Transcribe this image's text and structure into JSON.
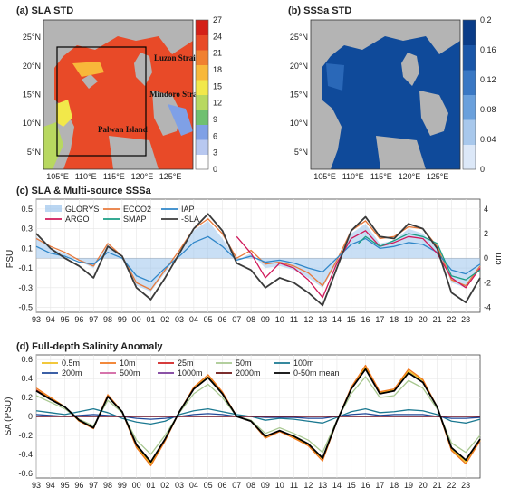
{
  "chart_data": [
    {
      "panel": "a",
      "type": "heatmap",
      "title": "(a) SLA STD",
      "x_ticks": [
        "105°E",
        "110°E",
        "115°E",
        "120°E",
        "125°E"
      ],
      "y_ticks": [
        "5°N",
        "10°N",
        "15°N",
        "20°N",
        "25°N"
      ],
      "colorbar_ticks": [
        "0",
        "3",
        "6",
        "9",
        "12",
        "15",
        "18",
        "21",
        "24",
        "27"
      ],
      "colorbar_colors": [
        "#ffffff",
        "#b8c8f0",
        "#7fa0e6",
        "#6fc070",
        "#b8d860",
        "#f2e84a",
        "#f8b83a",
        "#f08030",
        "#e84a28",
        "#d42018"
      ],
      "annotations": [
        "Luzon Strait",
        "Mindoro Strait",
        "Palwan Island"
      ]
    },
    {
      "panel": "b",
      "type": "heatmap",
      "title": "(b) SSSa STD",
      "x_ticks": [
        "105°E",
        "110°E",
        "115°E",
        "120°E",
        "125°E"
      ],
      "y_ticks": [
        "5°N",
        "10°N",
        "15°N",
        "20°N",
        "25°N"
      ],
      "colorbar_ticks": [
        "0",
        "0.04",
        "0.08",
        "0.12",
        "0.16",
        "0.2"
      ],
      "colorbar_colors": [
        "#dce8f8",
        "#a8c8ec",
        "#6aa0dc",
        "#3a78c4",
        "#1a56a8",
        "#0a3c88"
      ]
    },
    {
      "panel": "c",
      "type": "line",
      "title": "(c) SLA & Multi-source SSSa",
      "ylabel": "PSU",
      "y2label": "cm",
      "y_ticks": [
        "0.5",
        "0.3",
        "0.1",
        "-0.1",
        "-0.3",
        "-0.5"
      ],
      "y2_ticks": [
        "4",
        "2",
        "0",
        "-2",
        "-4"
      ],
      "ylim": [
        -0.55,
        0.6
      ],
      "y2lim": [
        -4.4,
        4.8
      ],
      "x_ticks": [
        "93",
        "94",
        "95",
        "96",
        "97",
        "98",
        "99",
        "00",
        "01",
        "02",
        "03",
        "04",
        "05",
        "06",
        "07",
        "08",
        "09",
        "10",
        "11",
        "12",
        "13",
        "14",
        "15",
        "16",
        "17",
        "18",
        "19",
        "20",
        "21",
        "22",
        "23"
      ],
      "x_years": [
        1993,
        2024
      ],
      "series": [
        {
          "name": "GLORYS",
          "color": "#9cc4ec",
          "years": [
            1993,
            1994,
            1995,
            1996,
            1997,
            1998,
            1999,
            2000,
            2001,
            2002,
            2003,
            2004,
            2005,
            2006,
            2007,
            2008,
            2009,
            2010,
            2011,
            2012,
            2013,
            2014,
            2015,
            2016,
            2017,
            2018,
            2019,
            2020,
            2021,
            2022,
            2023,
            2024
          ],
          "values": [
            0.22,
            0.1,
            0.05,
            -0.03,
            -0.1,
            0.14,
            0.0,
            -0.28,
            -0.34,
            -0.15,
            0.05,
            0.28,
            0.38,
            0.2,
            -0.02,
            0.05,
            -0.1,
            -0.08,
            -0.12,
            -0.2,
            -0.3,
            -0.05,
            0.25,
            0.35,
            0.15,
            0.18,
            0.3,
            0.25,
            0.1,
            -0.25,
            -0.3,
            -0.1
          ]
        },
        {
          "name": "ECCO2",
          "color": "#e87a3c",
          "years": [
            1993,
            1994,
            1995,
            1996,
            1997,
            1998,
            1999,
            2000,
            2001,
            2002,
            2003,
            2004,
            2005,
            2006,
            2007,
            2008,
            2009,
            2010,
            2011,
            2012,
            2013,
            2014,
            2015,
            2016,
            2017,
            2018,
            2019,
            2020,
            2021,
            2022,
            2023,
            2024
          ],
          "values": [
            0.2,
            0.12,
            0.06,
            -0.02,
            -0.08,
            0.15,
            0.02,
            -0.25,
            -0.32,
            -0.12,
            0.08,
            0.3,
            0.4,
            0.25,
            0.0,
            0.08,
            -0.06,
            -0.04,
            -0.08,
            -0.15,
            -0.28,
            -0.02,
            0.28,
            0.38,
            0.2,
            0.22,
            0.32,
            0.3,
            0.12,
            -0.22,
            -0.28,
            -0.08
          ]
        },
        {
          "name": "IAP",
          "color": "#2f86c8",
          "years": [
            1993,
            1994,
            1995,
            1996,
            1997,
            1998,
            1999,
            2000,
            2001,
            2002,
            2003,
            2004,
            2005,
            2006,
            2007,
            2008,
            2009,
            2010,
            2011,
            2012,
            2013,
            2014,
            2015,
            2016,
            2017,
            2018,
            2019,
            2020,
            2021,
            2022,
            2023,
            2024
          ],
          "values": [
            0.12,
            0.05,
            0.02,
            -0.04,
            -0.06,
            0.06,
            0.0,
            -0.18,
            -0.24,
            -0.1,
            0.02,
            0.16,
            0.22,
            0.12,
            -0.02,
            0.02,
            -0.04,
            -0.02,
            -0.05,
            -0.1,
            -0.14,
            0.0,
            0.14,
            0.2,
            0.1,
            0.12,
            0.16,
            0.14,
            0.06,
            -0.12,
            -0.16,
            -0.06
          ]
        },
        {
          "name": "ARGO",
          "color": "#d0185a",
          "years": [
            2007,
            2008,
            2009,
            2010,
            2011,
            2012,
            2013,
            2014,
            2015,
            2016,
            2017,
            2018,
            2019,
            2020,
            2021,
            2022,
            2023,
            2024
          ],
          "values": [
            0.22,
            0.05,
            -0.2,
            -0.05,
            -0.1,
            -0.22,
            -0.4,
            -0.05,
            0.2,
            0.28,
            0.12,
            0.16,
            0.22,
            0.2,
            0.05,
            -0.2,
            -0.3,
            -0.1
          ]
        },
        {
          "name": "SMAP",
          "color": "#1a9e84",
          "years": [
            2015.5,
            2016,
            2017,
            2018,
            2019,
            2020,
            2021,
            2022,
            2023,
            2024
          ],
          "values": [
            0.15,
            0.22,
            0.12,
            0.18,
            0.25,
            0.22,
            0.15,
            -0.18,
            -0.22,
            -0.12
          ]
        },
        {
          "name": "-SLA",
          "color": "#3a3a3a",
          "years": [
            1993,
            1994,
            1995,
            1996,
            1997,
            1998,
            1999,
            2000,
            2001,
            2002,
            2003,
            2004,
            2005,
            2006,
            2007,
            2008,
            2009,
            2010,
            2011,
            2012,
            2013,
            2014,
            2015,
            2016,
            2017,
            2018,
            2019,
            2020,
            2021,
            2022,
            2023,
            2024
          ],
          "values": [
            0.25,
            0.1,
            0.0,
            -0.08,
            -0.2,
            0.12,
            0.02,
            -0.3,
            -0.42,
            -0.2,
            0.05,
            0.3,
            0.45,
            0.28,
            -0.05,
            -0.12,
            -0.3,
            -0.2,
            -0.25,
            -0.35,
            -0.48,
            -0.1,
            0.28,
            0.42,
            0.22,
            0.2,
            0.35,
            0.3,
            0.1,
            -0.35,
            -0.45,
            -0.2
          ]
        }
      ]
    },
    {
      "panel": "d",
      "type": "line",
      "title": "(d) Full-depth Salinity Anomaly",
      "ylabel": "SA (PSU)",
      "y_ticks": [
        "0.6",
        "0.4",
        "0.2",
        "0",
        "-0.2",
        "-0.4",
        "-0.6"
      ],
      "ylim": [
        -0.65,
        0.65
      ],
      "x_ticks": [
        "93",
        "94",
        "95",
        "96",
        "97",
        "98",
        "99",
        "00",
        "01",
        "02",
        "03",
        "04",
        "05",
        "06",
        "07",
        "08",
        "09",
        "10",
        "11",
        "12",
        "13",
        "14",
        "15",
        "16",
        "17",
        "18",
        "19",
        "20",
        "21",
        "22",
        "23"
      ],
      "x_years": [
        1993,
        2024
      ],
      "series": [
        {
          "name": "0.5m",
          "color": "#f0c020",
          "years": [
            1993,
            1994,
            1995,
            1996,
            1997,
            1998,
            1999,
            2000,
            2001,
            2002,
            2003,
            2004,
            2005,
            2006,
            2007,
            2008,
            2009,
            2010,
            2011,
            2012,
            2013,
            2014,
            2015,
            2016,
            2017,
            2018,
            2019,
            2020,
            2021,
            2022,
            2023,
            2024
          ],
          "values": [
            0.28,
            0.2,
            0.1,
            -0.05,
            -0.12,
            0.22,
            0.05,
            -0.32,
            -0.5,
            -0.25,
            0.05,
            0.3,
            0.42,
            0.25,
            0.0,
            -0.05,
            -0.22,
            -0.15,
            -0.22,
            -0.3,
            -0.45,
            -0.05,
            0.3,
            0.52,
            0.25,
            0.28,
            0.48,
            0.38,
            0.1,
            -0.35,
            -0.48,
            -0.25
          ]
        },
        {
          "name": "10m",
          "color": "#f07820",
          "years": [
            1993,
            1994,
            1995,
            1996,
            1997,
            1998,
            1999,
            2000,
            2001,
            2002,
            2003,
            2004,
            2005,
            2006,
            2007,
            2008,
            2009,
            2010,
            2011,
            2012,
            2013,
            2014,
            2015,
            2016,
            2017,
            2018,
            2019,
            2020,
            2021,
            2022,
            2023,
            2024
          ],
          "values": [
            0.3,
            0.2,
            0.1,
            -0.05,
            -0.13,
            0.23,
            0.05,
            -0.33,
            -0.52,
            -0.26,
            0.05,
            0.31,
            0.44,
            0.26,
            0.0,
            -0.05,
            -0.23,
            -0.16,
            -0.23,
            -0.31,
            -0.47,
            -0.05,
            0.31,
            0.54,
            0.26,
            0.29,
            0.5,
            0.39,
            0.1,
            -0.36,
            -0.5,
            -0.26
          ]
        },
        {
          "name": "25m",
          "color": "#d02020",
          "years": [
            1993,
            1994,
            1995,
            1996,
            1997,
            1998,
            1999,
            2000,
            2001,
            2002,
            2003,
            2004,
            2005,
            2006,
            2007,
            2008,
            2009,
            2010,
            2011,
            2012,
            2013,
            2014,
            2015,
            2016,
            2017,
            2018,
            2019,
            2020,
            2021,
            2022,
            2023,
            2024
          ],
          "values": [
            0.28,
            0.18,
            0.1,
            -0.04,
            -0.12,
            0.21,
            0.05,
            -0.3,
            -0.48,
            -0.24,
            0.05,
            0.29,
            0.41,
            0.24,
            0.0,
            -0.05,
            -0.21,
            -0.15,
            -0.21,
            -0.29,
            -0.44,
            -0.05,
            0.29,
            0.5,
            0.24,
            0.27,
            0.46,
            0.36,
            0.1,
            -0.33,
            -0.46,
            -0.24
          ]
        },
        {
          "name": "50m",
          "color": "#a8c890",
          "years": [
            1993,
            1994,
            1995,
            1996,
            1997,
            1998,
            1999,
            2000,
            2001,
            2002,
            2003,
            2004,
            2005,
            2006,
            2007,
            2008,
            2009,
            2010,
            2011,
            2012,
            2013,
            2014,
            2015,
            2016,
            2017,
            2018,
            2019,
            2020,
            2021,
            2022,
            2023,
            2024
          ],
          "values": [
            0.22,
            0.15,
            0.08,
            -0.03,
            -0.1,
            0.17,
            0.04,
            -0.25,
            -0.4,
            -0.2,
            0.04,
            0.24,
            0.34,
            0.2,
            0.0,
            -0.04,
            -0.18,
            -0.12,
            -0.18,
            -0.25,
            -0.38,
            -0.04,
            0.24,
            0.42,
            0.2,
            0.22,
            0.38,
            0.3,
            0.08,
            -0.28,
            -0.38,
            -0.2
          ]
        },
        {
          "name": "100m",
          "color": "#1a7890",
          "years": [
            1993,
            1994,
            1995,
            1996,
            1997,
            1998,
            1999,
            2000,
            2001,
            2002,
            2003,
            2004,
            2005,
            2006,
            2007,
            2008,
            2009,
            2010,
            2011,
            2012,
            2013,
            2014,
            2015,
            2016,
            2017,
            2018,
            2019,
            2020,
            2021,
            2022,
            2023,
            2024
          ],
          "values": [
            0.06,
            0.04,
            0.02,
            0.05,
            0.08,
            0.04,
            -0.02,
            -0.06,
            -0.08,
            -0.05,
            0.02,
            0.06,
            0.08,
            0.05,
            0.02,
            0.0,
            -0.04,
            -0.02,
            -0.03,
            -0.05,
            -0.07,
            -0.01,
            0.05,
            0.08,
            0.04,
            0.05,
            0.07,
            0.06,
            0.02,
            -0.05,
            -0.07,
            -0.03
          ]
        },
        {
          "name": "200m",
          "color": "#204a9a",
          "years": [
            1993,
            1994,
            1995,
            1996,
            1997,
            1998,
            1999,
            2000,
            2001,
            2002,
            2003,
            2004,
            2005,
            2006,
            2007,
            2008,
            2009,
            2010,
            2011,
            2012,
            2013,
            2014,
            2015,
            2016,
            2017,
            2018,
            2019,
            2020,
            2021,
            2022,
            2023,
            2024
          ],
          "values": [
            0.02,
            0.01,
            0.0,
            0.01,
            0.02,
            0.01,
            0.0,
            -0.02,
            -0.03,
            -0.02,
            0.0,
            0.02,
            0.03,
            0.02,
            0.0,
            0.0,
            -0.01,
            -0.01,
            -0.01,
            -0.02,
            -0.02,
            0.0,
            0.02,
            0.03,
            0.01,
            0.02,
            0.02,
            0.02,
            0.0,
            -0.02,
            -0.02,
            -0.01
          ]
        },
        {
          "name": "500m",
          "color": "#d060a0",
          "years": [
            1993,
            2024
          ],
          "values": [
            0.0,
            0.0
          ]
        },
        {
          "name": "1000m",
          "color": "#7a3a9a",
          "years": [
            1993,
            2024
          ],
          "values": [
            0.0,
            0.0
          ]
        },
        {
          "name": "2000m",
          "color": "#6a1010",
          "years": [
            1993,
            2024
          ],
          "values": [
            0.0,
            0.0
          ]
        },
        {
          "name": "0-50m mean",
          "color": "#000000",
          "years": [
            1993,
            1994,
            1995,
            1996,
            1997,
            1998,
            1999,
            2000,
            2001,
            2002,
            2003,
            2004,
            2005,
            2006,
            2007,
            2008,
            2009,
            2010,
            2011,
            2012,
            2013,
            2014,
            2015,
            2016,
            2017,
            2018,
            2019,
            2020,
            2021,
            2022,
            2023,
            2024
          ],
          "values": [
            0.27,
            0.18,
            0.1,
            -0.04,
            -0.12,
            0.21,
            0.05,
            -0.3,
            -0.48,
            -0.24,
            0.05,
            0.29,
            0.41,
            0.24,
            0.0,
            -0.05,
            -0.21,
            -0.15,
            -0.21,
            -0.29,
            -0.44,
            -0.05,
            0.29,
            0.5,
            0.24,
            0.27,
            0.46,
            0.36,
            0.1,
            -0.33,
            -0.46,
            -0.24
          ]
        }
      ]
    }
  ]
}
